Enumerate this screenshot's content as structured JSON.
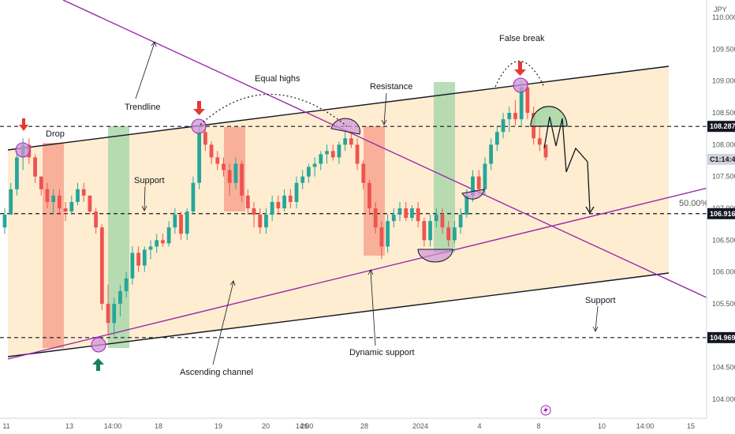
{
  "chart_data": {
    "type": "candlestick",
    "currency_label": "JPY",
    "ylim": [
      103.6,
      110.3
    ],
    "y_ticks": [
      104.0,
      104.5,
      105.0,
      105.5,
      106.0,
      106.5,
      107.0,
      107.5,
      108.0,
      108.5,
      109.0,
      109.5,
      110.0
    ],
    "x_ticks": [
      "11",
      "13",
      "14:00",
      "18",
      "19",
      "20",
      "14:00",
      "26",
      "28",
      "2024",
      "4",
      "8",
      "10",
      "14:00",
      "15"
    ],
    "price_tags": [
      {
        "value": 108.287,
        "text": "108.287",
        "style": "dark"
      },
      {
        "value": 107.77,
        "text": "C1:14:44",
        "style": "grey"
      },
      {
        "value": 106.916,
        "text": "106.916",
        "style": "dark"
      },
      {
        "value": 104.969,
        "text": "104.969",
        "style": "dark"
      }
    ],
    "horizontal_levels": [
      108.287,
      106.916,
      104.969
    ],
    "fib_label": "50.00%",
    "annotations": {
      "drop": "Drop",
      "trendline": "Trendline",
      "equal_highs": "Equal highs",
      "resistance": "Resistance",
      "false_break": "False break",
      "support_left": "Support",
      "support_right": "Support",
      "ascending_channel": "Ascending channel",
      "dynamic_support": "Dynamic support"
    },
    "colors": {
      "up": "#26a69a",
      "down": "#ef5350",
      "channel_fill": "#fde7c0",
      "trendline": "#9c27b0",
      "green_zone": "#a5d6a7",
      "red_zone": "#f7a08c",
      "circle": "#ce93d8"
    },
    "candles": [
      [
        106.7,
        107.0,
        106.6,
        106.9
      ],
      [
        106.9,
        107.4,
        106.9,
        107.3
      ],
      [
        107.3,
        107.9,
        107.2,
        107.8
      ],
      [
        107.8,
        108.1,
        107.6,
        108.0
      ],
      [
        108.0,
        108.1,
        107.7,
        107.8
      ],
      [
        107.8,
        107.85,
        107.4,
        107.5
      ],
      [
        107.5,
        107.5,
        107.2,
        107.3
      ],
      [
        107.3,
        107.4,
        107.0,
        107.1
      ],
      [
        107.1,
        107.3,
        106.9,
        107.2
      ],
      [
        107.2,
        107.3,
        106.9,
        107.0
      ],
      [
        107.0,
        107.1,
        106.8,
        106.95
      ],
      [
        106.95,
        107.2,
        106.9,
        107.1
      ],
      [
        107.1,
        107.4,
        107.05,
        107.3
      ],
      [
        107.3,
        107.4,
        107.1,
        107.2
      ],
      [
        107.2,
        107.2,
        106.9,
        106.95
      ],
      [
        106.95,
        107.0,
        106.6,
        106.7
      ],
      [
        106.7,
        106.75,
        105.4,
        105.5
      ],
      [
        105.5,
        105.8,
        105.0,
        105.2
      ],
      [
        105.2,
        105.6,
        105.0,
        105.5
      ],
      [
        105.5,
        105.8,
        105.3,
        105.7
      ],
      [
        105.7,
        106.0,
        105.6,
        105.9
      ],
      [
        105.9,
        106.4,
        105.8,
        106.3
      ],
      [
        106.3,
        106.4,
        106.0,
        106.1
      ],
      [
        106.1,
        106.4,
        106.0,
        106.35
      ],
      [
        106.35,
        106.5,
        106.2,
        106.4
      ],
      [
        106.4,
        106.6,
        106.3,
        106.5
      ],
      [
        106.5,
        106.6,
        106.4,
        106.45
      ],
      [
        106.45,
        106.8,
        106.4,
        106.7
      ],
      [
        106.7,
        107.0,
        106.6,
        106.9
      ],
      [
        106.9,
        106.95,
        106.5,
        106.6
      ],
      [
        106.6,
        107.0,
        106.5,
        106.95
      ],
      [
        106.95,
        107.5,
        106.9,
        107.4
      ],
      [
        107.4,
        108.3,
        107.3,
        108.2
      ],
      [
        108.2,
        108.35,
        107.9,
        108.0
      ],
      [
        108.0,
        108.05,
        107.7,
        107.8
      ],
      [
        107.8,
        107.9,
        107.6,
        107.7
      ],
      [
        107.7,
        107.8,
        107.5,
        107.6
      ],
      [
        107.6,
        107.7,
        107.2,
        107.4
      ],
      [
        107.4,
        107.8,
        107.3,
        107.7
      ],
      [
        107.7,
        107.75,
        107.1,
        107.2
      ],
      [
        107.2,
        107.3,
        106.9,
        107.0
      ],
      [
        107.0,
        107.1,
        106.7,
        106.9
      ],
      [
        106.9,
        107.0,
        106.6,
        106.7
      ],
      [
        106.7,
        107.0,
        106.6,
        106.9
      ],
      [
        106.9,
        107.2,
        106.8,
        107.1
      ],
      [
        107.1,
        107.2,
        106.9,
        107.0
      ],
      [
        107.0,
        107.3,
        106.95,
        107.2
      ],
      [
        107.2,
        107.3,
        107.0,
        107.1
      ],
      [
        107.1,
        107.5,
        107.0,
        107.4
      ],
      [
        107.4,
        107.6,
        107.3,
        107.5
      ],
      [
        107.5,
        107.7,
        107.4,
        107.65
      ],
      [
        107.65,
        107.8,
        107.5,
        107.7
      ],
      [
        107.7,
        107.9,
        107.6,
        107.85
      ],
      [
        107.85,
        108.0,
        107.7,
        107.9
      ],
      [
        107.9,
        108.0,
        107.75,
        107.8
      ],
      [
        107.8,
        108.05,
        107.7,
        108.0
      ],
      [
        108.0,
        108.2,
        107.9,
        108.1
      ],
      [
        108.1,
        108.2,
        107.95,
        108.0
      ],
      [
        108.0,
        108.1,
        107.6,
        107.7
      ],
      [
        107.7,
        107.75,
        107.3,
        107.4
      ],
      [
        107.4,
        107.45,
        106.9,
        107.0
      ],
      [
        107.0,
        107.1,
        106.6,
        106.7
      ],
      [
        106.7,
        106.8,
        106.2,
        106.4
      ],
      [
        106.4,
        106.9,
        106.3,
        106.8
      ],
      [
        106.8,
        107.0,
        106.7,
        106.9
      ],
      [
        106.9,
        107.1,
        106.8,
        107.0
      ],
      [
        107.0,
        107.1,
        106.8,
        106.85
      ],
      [
        106.85,
        107.05,
        106.8,
        107.0
      ],
      [
        107.0,
        107.1,
        106.7,
        106.8
      ],
      [
        106.8,
        106.85,
        106.4,
        106.5
      ],
      [
        106.5,
        106.9,
        106.4,
        106.8
      ],
      [
        106.8,
        107.0,
        106.7,
        106.9
      ],
      [
        106.9,
        107.0,
        106.6,
        106.7
      ],
      [
        106.7,
        106.8,
        106.4,
        106.5
      ],
      [
        106.5,
        106.8,
        106.45,
        106.7
      ],
      [
        106.7,
        107.0,
        106.6,
        106.9
      ],
      [
        106.9,
        107.3,
        106.85,
        107.2
      ],
      [
        107.2,
        107.6,
        107.1,
        107.5
      ],
      [
        107.5,
        107.6,
        107.2,
        107.3
      ],
      [
        107.3,
        107.8,
        107.2,
        107.7
      ],
      [
        107.7,
        108.1,
        107.6,
        108.0
      ],
      [
        108.0,
        108.3,
        107.9,
        108.2
      ],
      [
        108.2,
        108.5,
        108.1,
        108.4
      ],
      [
        108.4,
        108.6,
        108.2,
        108.5
      ],
      [
        108.5,
        108.7,
        108.3,
        108.4
      ],
      [
        108.4,
        109.0,
        108.3,
        108.9
      ],
      [
        108.9,
        109.0,
        108.4,
        108.5
      ],
      [
        108.5,
        108.6,
        108.0,
        108.1
      ],
      [
        108.1,
        108.3,
        107.9,
        108.0
      ],
      [
        108.0,
        108.0,
        107.75,
        107.8
      ]
    ]
  }
}
